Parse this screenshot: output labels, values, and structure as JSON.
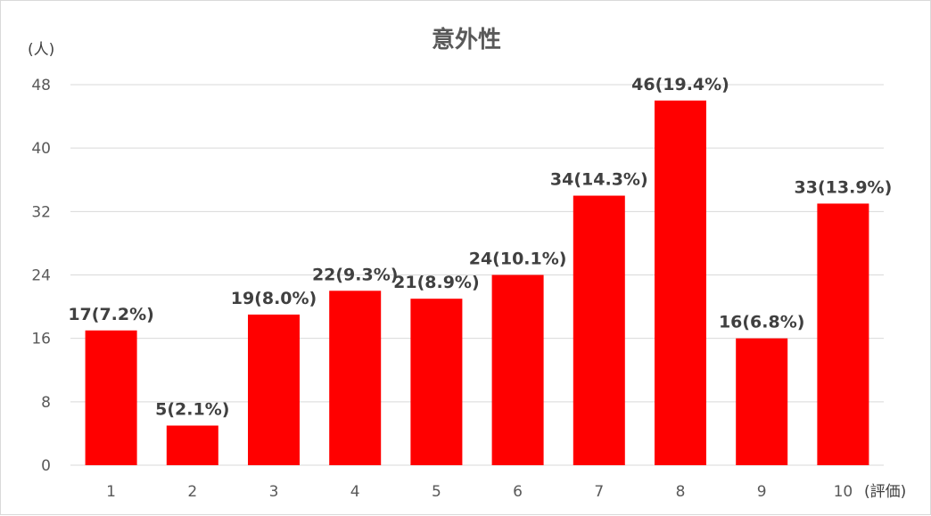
{
  "chart_data": {
    "type": "bar",
    "title": "意外性",
    "ylabel": "(人)",
    "xlabel": "(評価)",
    "categories": [
      "1",
      "2",
      "3",
      "4",
      "5",
      "6",
      "7",
      "8",
      "9",
      "10"
    ],
    "values": [
      17,
      5,
      19,
      22,
      21,
      24,
      34,
      46,
      16,
      33
    ],
    "data_labels": [
      "17(7.2%)",
      "5(2.1%)",
      "19(8.0%)",
      "22(9.3%)",
      "21(8.9%)",
      "24(10.1%)",
      "34(14.3%)",
      "46(19.4%)",
      "16(6.8%)",
      "33(13.9%)"
    ],
    "ylim": [
      0,
      48
    ],
    "yticks": [
      0,
      8,
      16,
      24,
      32,
      40,
      48
    ],
    "grid": true,
    "legend": "none",
    "bar_color": "#ff0000"
  }
}
